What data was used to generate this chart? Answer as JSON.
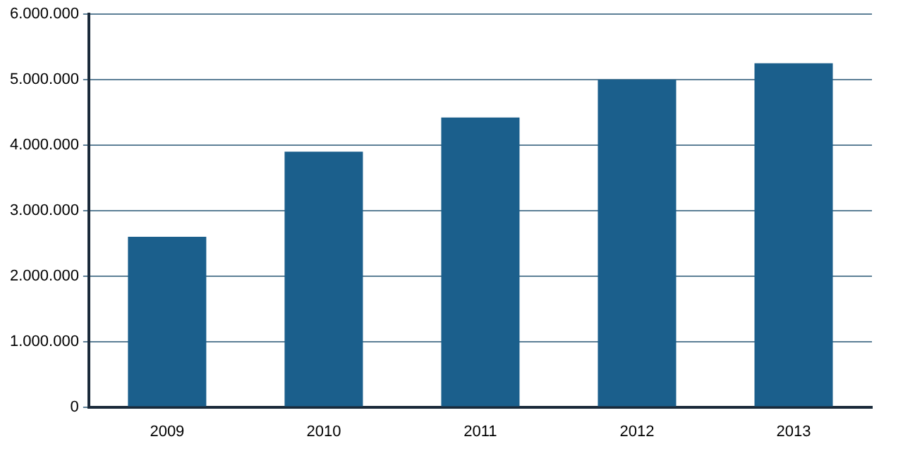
{
  "chart_data": {
    "type": "bar",
    "categories": [
      "2009",
      "2010",
      "2011",
      "2012",
      "2013"
    ],
    "values": [
      2600000,
      3900000,
      4420000,
      5000000,
      5250000
    ],
    "color": "#1b5f8c",
    "ylim": [
      0,
      6000000
    ],
    "yticks": [
      {
        "value": 0,
        "label": "0"
      },
      {
        "value": 1000000,
        "label": "1.000.000"
      },
      {
        "value": 2000000,
        "label": "2.000.000"
      },
      {
        "value": 3000000,
        "label": "3.000.000"
      },
      {
        "value": 4000000,
        "label": "4.000.000"
      },
      {
        "value": 5000000,
        "label": "5.000.000"
      },
      {
        "value": 6000000,
        "label": "6.000.000"
      }
    ],
    "grid": "y",
    "legend": false
  }
}
